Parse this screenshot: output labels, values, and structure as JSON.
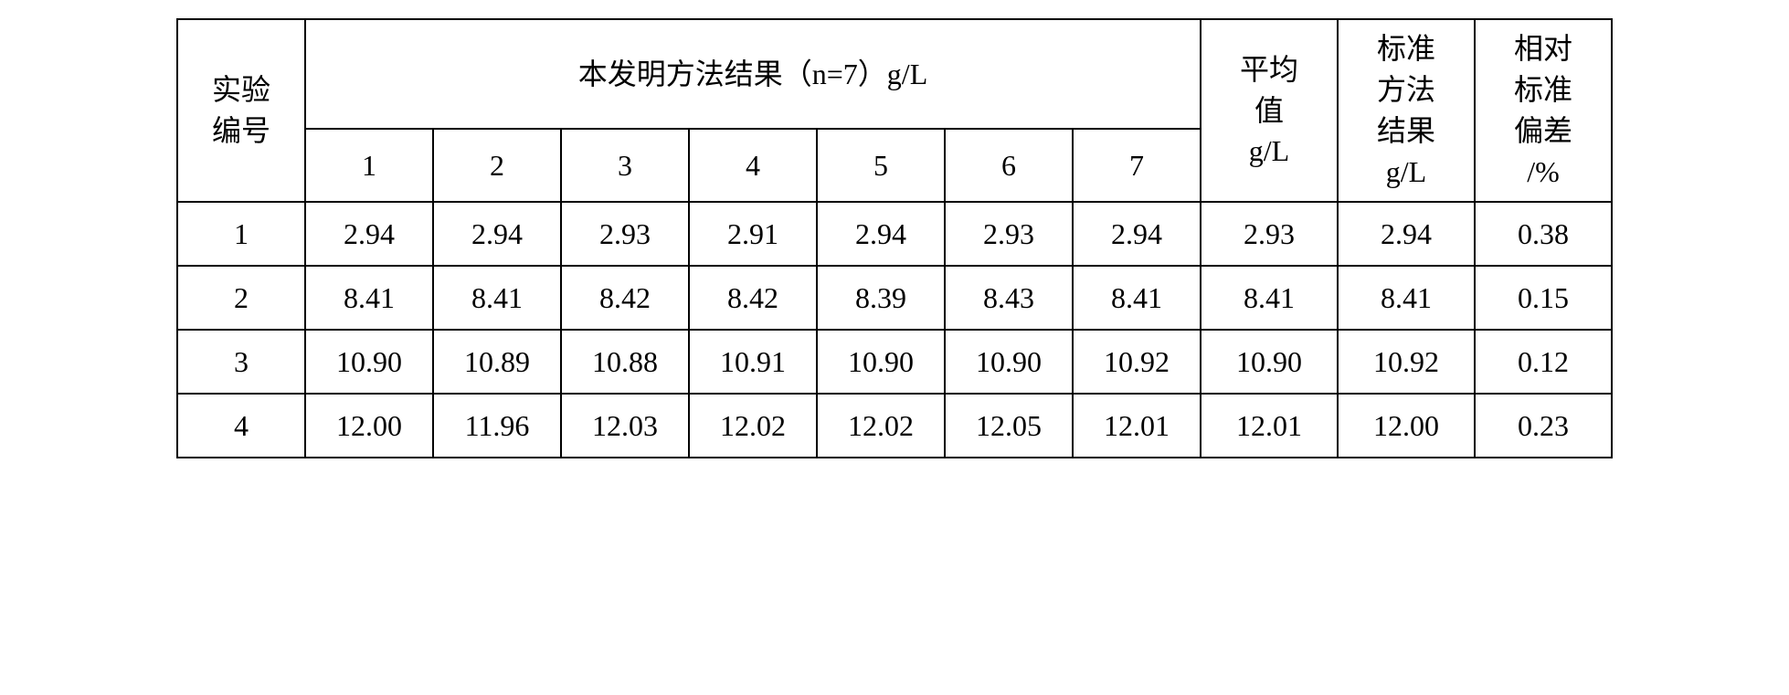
{
  "table": {
    "headers": {
      "experiment_label": "实验\n编号",
      "method_results_header": "本发明方法结果（n=7）g/L",
      "trial_numbers": [
        "1",
        "2",
        "3",
        "4",
        "5",
        "6",
        "7"
      ],
      "average": "平均\n值\ng/L",
      "standard_method": "标准\n方法\n结果\ng/L",
      "relative_std_dev": "相对\n标准\n偏差\n/%"
    },
    "rows": [
      {
        "id": "1",
        "values": [
          "2.94",
          "2.94",
          "2.93",
          "2.91",
          "2.94",
          "2.93",
          "2.94"
        ],
        "average": "2.93",
        "standard": "2.94",
        "rsd": "0.38"
      },
      {
        "id": "2",
        "values": [
          "8.41",
          "8.41",
          "8.42",
          "8.42",
          "8.39",
          "8.43",
          "8.41"
        ],
        "average": "8.41",
        "standard": "8.41",
        "rsd": "0.15"
      },
      {
        "id": "3",
        "values": [
          "10.90",
          "10.89",
          "10.88",
          "10.91",
          "10.90",
          "10.90",
          "10.92"
        ],
        "average": "10.90",
        "standard": "10.92",
        "rsd": "0.12"
      },
      {
        "id": "4",
        "values": [
          "12.00",
          "11.96",
          "12.03",
          "12.02",
          "12.02",
          "12.05",
          "12.01"
        ],
        "average": "12.01",
        "standard": "12.00",
        "rsd": "0.23"
      }
    ]
  },
  "styling": {
    "border_color": "#000000",
    "border_width": 2,
    "background_color": "#ffffff",
    "text_color": "#000000",
    "font_size": 32,
    "font_family_cjk": "SimSun",
    "font_family_num": "Times New Roman"
  }
}
